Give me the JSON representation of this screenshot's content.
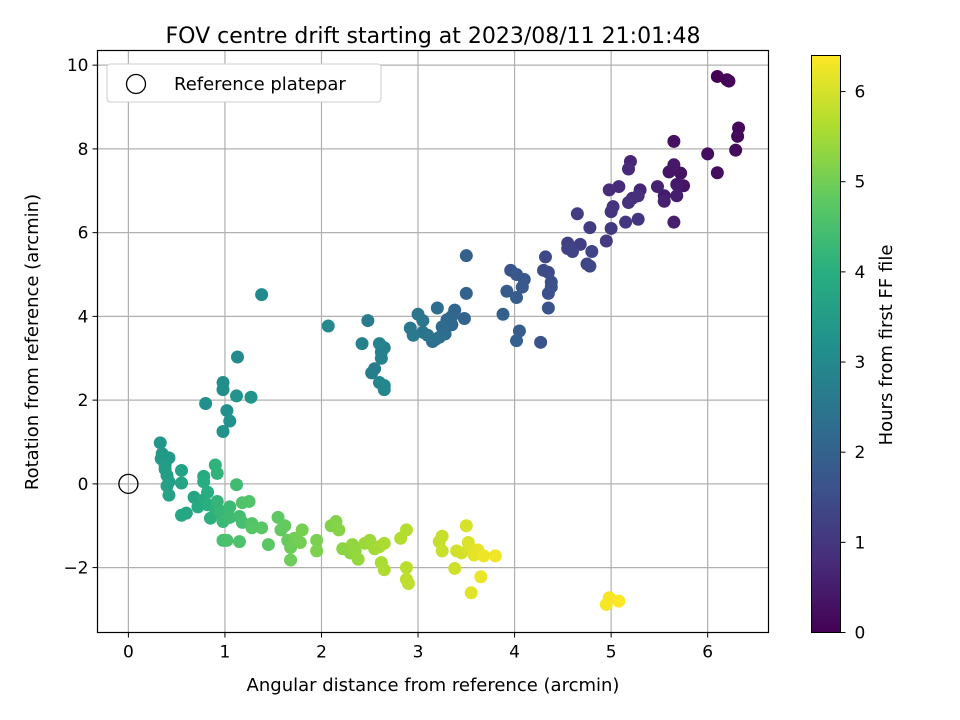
{
  "chart_data": {
    "type": "scatter",
    "title": "FOV centre drift starting at 2023/08/11 21:01:48",
    "xlabel": "Angular distance from reference (arcmin)",
    "ylabel": "Rotation from reference (arcmin)",
    "xlim": [
      -0.32,
      6.63
    ],
    "ylim": [
      -3.55,
      10.35
    ],
    "xticks": [
      0,
      1,
      2,
      3,
      4,
      5,
      6
    ],
    "yticks": [
      -2,
      0,
      2,
      4,
      6,
      8,
      10
    ],
    "grid": true,
    "legend": {
      "label": "Reference platepar",
      "placement": "top-left",
      "marker": "open-circle"
    },
    "reference_point": {
      "x": 0,
      "y": 0
    },
    "colorbar": {
      "label": "Hours from first FF file",
      "colormap": "viridis",
      "range": [
        0,
        6.4
      ],
      "ticks": [
        0,
        1,
        2,
        3,
        4,
        5,
        6
      ]
    },
    "points": [
      {
        "x": 6.1,
        "y": 9.73,
        "c": 0.02
      },
      {
        "x": 6.2,
        "y": 9.65,
        "c": 0.05
      },
      {
        "x": 6.22,
        "y": 9.62,
        "c": 0.08
      },
      {
        "x": 6.32,
        "y": 8.5,
        "c": 0.12
      },
      {
        "x": 6.31,
        "y": 8.3,
        "c": 0.15
      },
      {
        "x": 6.29,
        "y": 7.97,
        "c": 0.18
      },
      {
        "x": 6.0,
        "y": 7.88,
        "c": 0.22
      },
      {
        "x": 6.1,
        "y": 7.43,
        "c": 0.25
      },
      {
        "x": 5.65,
        "y": 8.18,
        "c": 0.28
      },
      {
        "x": 5.72,
        "y": 7.42,
        "c": 0.32
      },
      {
        "x": 5.75,
        "y": 7.12,
        "c": 0.35
      },
      {
        "x": 5.6,
        "y": 7.45,
        "c": 0.38
      },
      {
        "x": 5.65,
        "y": 7.62,
        "c": 0.42
      },
      {
        "x": 5.68,
        "y": 7.15,
        "c": 0.45
      },
      {
        "x": 5.55,
        "y": 6.88,
        "c": 0.48
      },
      {
        "x": 5.68,
        "y": 6.88,
        "c": 0.52
      },
      {
        "x": 5.65,
        "y": 6.25,
        "c": 0.55
      },
      {
        "x": 5.55,
        "y": 6.75,
        "c": 0.58
      },
      {
        "x": 5.48,
        "y": 7.1,
        "c": 0.62
      },
      {
        "x": 5.3,
        "y": 7.02,
        "c": 0.65
      },
      {
        "x": 5.2,
        "y": 7.7,
        "c": 0.68
      },
      {
        "x": 5.18,
        "y": 7.52,
        "c": 0.72
      },
      {
        "x": 5.08,
        "y": 7.1,
        "c": 0.75
      },
      {
        "x": 4.98,
        "y": 7.02,
        "c": 0.78
      },
      {
        "x": 5.22,
        "y": 6.82,
        "c": 0.82
      },
      {
        "x": 5.28,
        "y": 6.88,
        "c": 0.85
      },
      {
        "x": 5.18,
        "y": 6.72,
        "c": 0.88
      },
      {
        "x": 5.02,
        "y": 6.62,
        "c": 0.92
      },
      {
        "x": 5.0,
        "y": 6.5,
        "c": 0.95
      },
      {
        "x": 5.28,
        "y": 6.32,
        "c": 0.98
      },
      {
        "x": 5.15,
        "y": 6.25,
        "c": 1.02
      },
      {
        "x": 5.0,
        "y": 6.1,
        "c": 1.05
      },
      {
        "x": 4.95,
        "y": 5.8,
        "c": 1.08
      },
      {
        "x": 4.78,
        "y": 6.12,
        "c": 1.12
      },
      {
        "x": 4.65,
        "y": 6.45,
        "c": 1.15
      },
      {
        "x": 4.68,
        "y": 5.72,
        "c": 1.18
      },
      {
        "x": 4.55,
        "y": 5.75,
        "c": 1.22
      },
      {
        "x": 4.55,
        "y": 5.62,
        "c": 1.25
      },
      {
        "x": 4.6,
        "y": 5.55,
        "c": 1.28
      },
      {
        "x": 4.8,
        "y": 5.55,
        "c": 1.32
      },
      {
        "x": 4.75,
        "y": 5.25,
        "c": 1.35
      },
      {
        "x": 4.78,
        "y": 5.2,
        "c": 1.38
      },
      {
        "x": 4.32,
        "y": 5.42,
        "c": 1.42
      },
      {
        "x": 4.3,
        "y": 5.1,
        "c": 1.45
      },
      {
        "x": 4.35,
        "y": 5.05,
        "c": 1.48
      },
      {
        "x": 4.38,
        "y": 4.82,
        "c": 1.52
      },
      {
        "x": 4.38,
        "y": 4.7,
        "c": 1.55
      },
      {
        "x": 4.35,
        "y": 4.55,
        "c": 1.58
      },
      {
        "x": 4.35,
        "y": 4.2,
        "c": 1.62
      },
      {
        "x": 4.27,
        "y": 3.38,
        "c": 1.65
      },
      {
        "x": 3.96,
        "y": 5.1,
        "c": 1.68
      },
      {
        "x": 4.02,
        "y": 5.0,
        "c": 1.72
      },
      {
        "x": 4.1,
        "y": 4.88,
        "c": 1.75
      },
      {
        "x": 4.08,
        "y": 4.7,
        "c": 1.78
      },
      {
        "x": 3.92,
        "y": 4.6,
        "c": 1.82
      },
      {
        "x": 4.02,
        "y": 4.45,
        "c": 1.85
      },
      {
        "x": 4.05,
        "y": 3.65,
        "c": 1.88
      },
      {
        "x": 4.02,
        "y": 3.42,
        "c": 1.92
      },
      {
        "x": 3.88,
        "y": 4.05,
        "c": 1.95
      },
      {
        "x": 3.5,
        "y": 5.45,
        "c": 1.98
      },
      {
        "x": 3.5,
        "y": 4.55,
        "c": 2.02
      },
      {
        "x": 3.48,
        "y": 3.95,
        "c": 2.05
      },
      {
        "x": 3.38,
        "y": 4.15,
        "c": 2.08
      },
      {
        "x": 3.35,
        "y": 4.0,
        "c": 2.12
      },
      {
        "x": 3.35,
        "y": 3.8,
        "c": 2.15
      },
      {
        "x": 3.3,
        "y": 3.92,
        "c": 2.18
      },
      {
        "x": 3.25,
        "y": 3.75,
        "c": 2.22
      },
      {
        "x": 3.28,
        "y": 3.58,
        "c": 2.25
      },
      {
        "x": 3.2,
        "y": 4.2,
        "c": 2.28
      },
      {
        "x": 3.22,
        "y": 3.5,
        "c": 2.32
      },
      {
        "x": 3.15,
        "y": 3.4,
        "c": 2.35
      },
      {
        "x": 3.18,
        "y": 3.45,
        "c": 2.38
      },
      {
        "x": 3.1,
        "y": 3.55,
        "c": 2.42
      },
      {
        "x": 3.05,
        "y": 3.62,
        "c": 2.45
      },
      {
        "x": 3.0,
        "y": 4.05,
        "c": 2.48
      },
      {
        "x": 3.05,
        "y": 3.9,
        "c": 2.52
      },
      {
        "x": 2.92,
        "y": 3.72,
        "c": 2.55
      },
      {
        "x": 2.95,
        "y": 3.55,
        "c": 2.58
      },
      {
        "x": 2.48,
        "y": 3.9,
        "c": 2.62
      },
      {
        "x": 2.55,
        "y": 2.75,
        "c": 2.65
      },
      {
        "x": 2.52,
        "y": 2.65,
        "c": 2.68
      },
      {
        "x": 2.65,
        "y": 3.25,
        "c": 2.72
      },
      {
        "x": 2.62,
        "y": 3.15,
        "c": 2.75
      },
      {
        "x": 2.62,
        "y": 3.0,
        "c": 2.78
      },
      {
        "x": 2.6,
        "y": 3.35,
        "c": 2.82
      },
      {
        "x": 2.42,
        "y": 3.35,
        "c": 2.85
      },
      {
        "x": 2.6,
        "y": 2.42,
        "c": 2.88
      },
      {
        "x": 2.65,
        "y": 2.35,
        "c": 2.92
      },
      {
        "x": 2.65,
        "y": 2.25,
        "c": 2.95
      },
      {
        "x": 2.07,
        "y": 3.77,
        "c": 2.98
      },
      {
        "x": 1.38,
        "y": 4.52,
        "c": 3.02
      },
      {
        "x": 1.13,
        "y": 3.03,
        "c": 3.05
      },
      {
        "x": 0.98,
        "y": 2.42,
        "c": 3.08
      },
      {
        "x": 0.98,
        "y": 2.25,
        "c": 3.12
      },
      {
        "x": 0.8,
        "y": 1.92,
        "c": 3.15
      },
      {
        "x": 1.02,
        "y": 1.75,
        "c": 3.18
      },
      {
        "x": 1.05,
        "y": 1.5,
        "c": 3.22
      },
      {
        "x": 0.98,
        "y": 1.25,
        "c": 3.25
      },
      {
        "x": 1.12,
        "y": 2.1,
        "c": 3.28
      },
      {
        "x": 1.27,
        "y": 2.07,
        "c": 3.32
      },
      {
        "x": 0.33,
        "y": 0.98,
        "c": 3.35
      },
      {
        "x": 0.35,
        "y": 0.72,
        "c": 3.38
      },
      {
        "x": 0.42,
        "y": 0.62,
        "c": 3.42
      },
      {
        "x": 0.34,
        "y": 0.6,
        "c": 3.45
      },
      {
        "x": 0.38,
        "y": 0.45,
        "c": 3.48
      },
      {
        "x": 0.38,
        "y": 0.35,
        "c": 3.52
      },
      {
        "x": 0.4,
        "y": 0.2,
        "c": 3.55
      },
      {
        "x": 0.42,
        "y": 0.05,
        "c": 3.58
      },
      {
        "x": 0.4,
        "y": -0.05,
        "c": 3.62
      },
      {
        "x": 0.42,
        "y": -0.27,
        "c": 3.65
      },
      {
        "x": 0.55,
        "y": 0.32,
        "c": 3.68
      },
      {
        "x": 0.55,
        "y": 0.02,
        "c": 3.72
      },
      {
        "x": 0.68,
        "y": -0.32,
        "c": 3.75
      },
      {
        "x": 0.6,
        "y": -0.7,
        "c": 3.78
      },
      {
        "x": 0.55,
        "y": -0.75,
        "c": 3.82
      },
      {
        "x": 0.72,
        "y": -0.55,
        "c": 3.85
      },
      {
        "x": 0.78,
        "y": -0.38,
        "c": 3.88
      },
      {
        "x": 0.78,
        "y": 0.18,
        "c": 3.92
      },
      {
        "x": 0.78,
        "y": 0.05,
        "c": 3.95
      },
      {
        "x": 0.82,
        "y": -0.2,
        "c": 3.98
      },
      {
        "x": 0.82,
        "y": -0.5,
        "c": 4.02
      },
      {
        "x": 0.85,
        "y": -0.82,
        "c": 4.05
      },
      {
        "x": 0.9,
        "y": -0.6,
        "c": 4.08
      },
      {
        "x": 0.9,
        "y": 0.45,
        "c": 4.12
      },
      {
        "x": 0.92,
        "y": 0.25,
        "c": 4.15
      },
      {
        "x": 0.92,
        "y": -0.42,
        "c": 4.18
      },
      {
        "x": 0.95,
        "y": -0.65,
        "c": 4.22
      },
      {
        "x": 0.98,
        "y": -0.78,
        "c": 4.25
      },
      {
        "x": 0.98,
        "y": -0.9,
        "c": 4.28
      },
      {
        "x": 1.05,
        "y": -0.55,
        "c": 4.32
      },
      {
        "x": 1.05,
        "y": -0.8,
        "c": 4.35
      },
      {
        "x": 1.12,
        "y": -0.02,
        "c": 4.38
      },
      {
        "x": 1.15,
        "y": -0.78,
        "c": 4.42
      },
      {
        "x": 1.18,
        "y": -0.92,
        "c": 4.45
      },
      {
        "x": 0.98,
        "y": -1.35,
        "c": 4.48
      },
      {
        "x": 1.02,
        "y": -1.35,
        "c": 4.52
      },
      {
        "x": 1.15,
        "y": -1.38,
        "c": 4.55
      },
      {
        "x": 1.18,
        "y": -0.45,
        "c": 4.58
      },
      {
        "x": 1.25,
        "y": -0.42,
        "c": 4.62
      },
      {
        "x": 1.28,
        "y": -0.95,
        "c": 4.65
      },
      {
        "x": 1.28,
        "y": -1.05,
        "c": 4.68
      },
      {
        "x": 1.38,
        "y": -1.05,
        "c": 4.72
      },
      {
        "x": 1.45,
        "y": -1.45,
        "c": 4.75
      },
      {
        "x": 1.55,
        "y": -0.8,
        "c": 4.78
      },
      {
        "x": 1.58,
        "y": -1.1,
        "c": 4.82
      },
      {
        "x": 1.62,
        "y": -1.0,
        "c": 4.85
      },
      {
        "x": 1.65,
        "y": -1.35,
        "c": 4.88
      },
      {
        "x": 1.68,
        "y": -1.52,
        "c": 4.92
      },
      {
        "x": 1.68,
        "y": -1.82,
        "c": 4.95
      },
      {
        "x": 1.72,
        "y": -1.3,
        "c": 4.98
      },
      {
        "x": 1.78,
        "y": -1.4,
        "c": 5.02
      },
      {
        "x": 1.8,
        "y": -1.1,
        "c": 5.05
      },
      {
        "x": 1.95,
        "y": -1.35,
        "c": 5.08
      },
      {
        "x": 1.95,
        "y": -1.6,
        "c": 5.12
      },
      {
        "x": 2.1,
        "y": -1.0,
        "c": 5.15
      },
      {
        "x": 2.15,
        "y": -0.9,
        "c": 5.18
      },
      {
        "x": 2.18,
        "y": -1.1,
        "c": 5.22
      },
      {
        "x": 2.22,
        "y": -1.55,
        "c": 5.25
      },
      {
        "x": 2.3,
        "y": -1.65,
        "c": 5.28
      },
      {
        "x": 2.32,
        "y": -1.45,
        "c": 5.32
      },
      {
        "x": 2.35,
        "y": -1.6,
        "c": 5.35
      },
      {
        "x": 2.38,
        "y": -1.8,
        "c": 5.38
      },
      {
        "x": 2.45,
        "y": -1.42,
        "c": 5.42
      },
      {
        "x": 2.5,
        "y": -1.35,
        "c": 5.45
      },
      {
        "x": 2.55,
        "y": -1.55,
        "c": 5.48
      },
      {
        "x": 2.6,
        "y": -1.5,
        "c": 5.52
      },
      {
        "x": 2.62,
        "y": -1.88,
        "c": 5.55
      },
      {
        "x": 2.65,
        "y": -1.42,
        "c": 5.58
      },
      {
        "x": 2.65,
        "y": -2.05,
        "c": 5.62
      },
      {
        "x": 2.82,
        "y": -1.3,
        "c": 5.65
      },
      {
        "x": 2.88,
        "y": -1.1,
        "c": 5.68
      },
      {
        "x": 2.88,
        "y": -2.0,
        "c": 5.72
      },
      {
        "x": 2.88,
        "y": -2.28,
        "c": 5.75
      },
      {
        "x": 2.9,
        "y": -2.38,
        "c": 5.78
      },
      {
        "x": 3.22,
        "y": -1.38,
        "c": 5.82
      },
      {
        "x": 3.25,
        "y": -1.25,
        "c": 5.85
      },
      {
        "x": 3.25,
        "y": -1.6,
        "c": 5.88
      },
      {
        "x": 3.38,
        "y": -2.02,
        "c": 5.92
      },
      {
        "x": 3.4,
        "y": -1.6,
        "c": 5.95
      },
      {
        "x": 3.45,
        "y": -1.65,
        "c": 5.98
      },
      {
        "x": 3.5,
        "y": -1.0,
        "c": 6.02
      },
      {
        "x": 3.52,
        "y": -1.4,
        "c": 6.05
      },
      {
        "x": 3.55,
        "y": -1.55,
        "c": 6.08
      },
      {
        "x": 3.55,
        "y": -2.6,
        "c": 6.12
      },
      {
        "x": 3.58,
        "y": -1.7,
        "c": 6.15
      },
      {
        "x": 3.62,
        "y": -1.58,
        "c": 6.18
      },
      {
        "x": 3.65,
        "y": -2.22,
        "c": 6.22
      },
      {
        "x": 3.68,
        "y": -1.72,
        "c": 6.25
      },
      {
        "x": 3.8,
        "y": -1.72,
        "c": 6.28
      },
      {
        "x": 4.95,
        "y": -2.88,
        "c": 6.32
      },
      {
        "x": 4.98,
        "y": -2.72,
        "c": 6.35
      },
      {
        "x": 5.08,
        "y": -2.8,
        "c": 6.38
      }
    ]
  }
}
